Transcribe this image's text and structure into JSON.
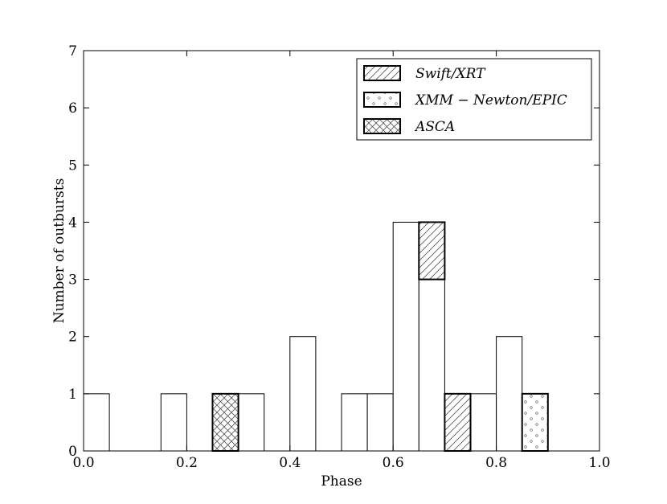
{
  "chart_data": {
    "type": "histogram",
    "x_label": "Phase",
    "y_label": "Number of outbursts",
    "bins": [
      0,
      0.05,
      0.1,
      0.15,
      0.2,
      0.25,
      0.3,
      0.35,
      0.4,
      0.45,
      0.5,
      0.55,
      0.6,
      0.65,
      0.7,
      0.75,
      0.8,
      0.85,
      0.9,
      0.95,
      1
    ],
    "counts": [
      1,
      0,
      0,
      1,
      0,
      0,
      1,
      0,
      2,
      0,
      1,
      1,
      4,
      3,
      0,
      1,
      2,
      0,
      0,
      0
    ],
    "series": [
      {
        "name": "Swift/XRT",
        "hatch": "/",
        "values": [
          0,
          0,
          0,
          0,
          0,
          0,
          0,
          0,
          0,
          0,
          0,
          0,
          0,
          1,
          1,
          0,
          0,
          0,
          0,
          0
        ]
      },
      {
        "name": "XMM − Newton/EPIC",
        "hatch": ".",
        "values": [
          0,
          0,
          0,
          0,
          0,
          0,
          0,
          0,
          0,
          0,
          0,
          0,
          0,
          0,
          0,
          0,
          0,
          1,
          0,
          0
        ]
      },
      {
        "name": "ASCA",
        "hatch": "x",
        "values": [
          0,
          0,
          0,
          0,
          0,
          1,
          0,
          0,
          0,
          0,
          0,
          0,
          0,
          0,
          0,
          0,
          0,
          0,
          0,
          0
        ]
      }
    ],
    "xlim": [
      0,
      1
    ],
    "ylim": [
      0,
      7
    ],
    "xticks": [
      {
        "value": 0,
        "label": "0.0"
      },
      {
        "value": 0.2,
        "label": "0.2"
      },
      {
        "value": 0.4,
        "label": "0.4"
      },
      {
        "value": 0.6,
        "label": "0.6"
      },
      {
        "value": 0.8,
        "label": "0.8"
      },
      {
        "value": 1,
        "label": "1.0"
      }
    ],
    "yticks": [
      0,
      1,
      2,
      3,
      4,
      5,
      6,
      7
    ],
    "legend": "upper right"
  }
}
